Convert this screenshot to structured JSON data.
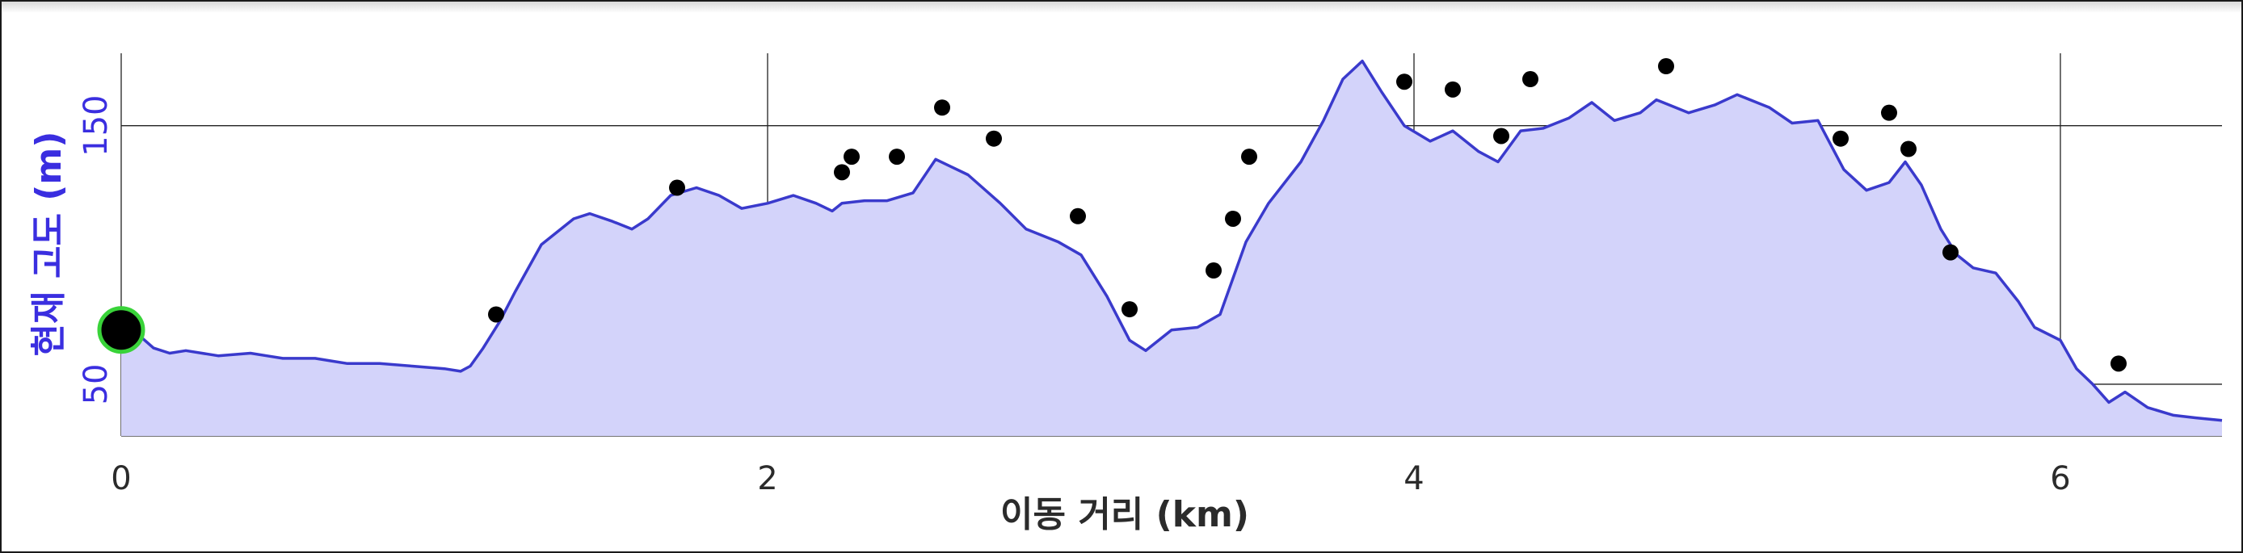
{
  "chart_data": {
    "type": "area",
    "xlabel": "이동 거리 (km)",
    "ylabel": "현재 고도 (m)",
    "xlim": [
      0,
      6.5
    ],
    "ylim": [
      30,
      178
    ],
    "x_ticks": [
      0,
      2,
      4,
      6
    ],
    "y_ticks": [
      50,
      150
    ],
    "grid": true,
    "colors": {
      "line": "#3a3acc",
      "fill": "#d3d3fa",
      "ylabel": "#3a2ee0",
      "marker_fill": "#000000",
      "marker_ring": "#39d339",
      "points": "#000000"
    },
    "series": [
      {
        "x": [
          0.0,
          0.1,
          0.15,
          0.2,
          0.3,
          0.4,
          0.45,
          0.5,
          0.6,
          0.65,
          0.7,
          0.8,
          0.9,
          1.0,
          1.05,
          1.08,
          1.12,
          1.17,
          1.22,
          1.3,
          1.4,
          1.45,
          1.52,
          1.58,
          1.63,
          1.7,
          1.78,
          1.85,
          1.92,
          2.0,
          2.08,
          2.15,
          2.2,
          2.23,
          2.3,
          2.37,
          2.45,
          2.52,
          2.57,
          2.62,
          2.72,
          2.8,
          2.9,
          2.97,
          3.05,
          3.12,
          3.17,
          3.25,
          3.33,
          3.4,
          3.48,
          3.55,
          3.65,
          3.72,
          3.78,
          3.84,
          3.9,
          3.97,
          4.05,
          4.12,
          4.2,
          4.26,
          4.33,
          4.4,
          4.48,
          4.55,
          4.62,
          4.7,
          4.75,
          4.85,
          4.93,
          5.0,
          5.1,
          5.17,
          5.25,
          5.33,
          5.4,
          5.47,
          5.52,
          5.57,
          5.63,
          5.68,
          5.73,
          5.8,
          5.87,
          5.92,
          6.0,
          6.05,
          6.1,
          6.15,
          6.2,
          6.27,
          6.35,
          6.42,
          6.5
        ],
        "y": [
          75,
          64,
          62,
          63,
          61,
          62,
          61,
          60,
          60,
          59,
          58,
          58,
          57,
          56,
          55,
          57,
          64,
          74,
          86,
          104,
          114,
          116,
          113,
          110,
          114,
          123,
          126,
          123,
          118,
          120,
          123,
          120,
          117,
          120,
          121,
          121,
          124,
          137,
          134,
          131,
          120,
          110,
          105,
          100,
          84,
          67,
          63,
          71,
          72,
          77,
          105,
          120,
          136,
          152,
          168,
          175,
          163,
          150,
          144,
          148,
          140,
          136,
          148,
          149,
          153,
          159,
          152,
          155,
          160,
          155,
          158,
          162,
          157,
          151,
          152,
          133,
          125,
          128,
          136,
          127,
          110,
          100,
          95,
          93,
          82,
          72,
          67,
          56,
          50,
          43,
          47,
          41,
          38,
          37,
          36
        ]
      }
    ],
    "scatter": {
      "x": [
        0.0,
        1.16,
        1.72,
        2.23,
        2.26,
        2.4,
        2.54,
        2.7,
        2.96,
        3.12,
        3.38,
        3.44,
        3.49,
        3.97,
        4.12,
        4.27,
        4.36,
        4.78,
        5.32,
        5.47,
        5.53,
        5.66,
        6.18
      ],
      "y": [
        71,
        77,
        126,
        132,
        138,
        138,
        157,
        145,
        115,
        79,
        94,
        114,
        138,
        167,
        164,
        146,
        168,
        173,
        145,
        155,
        141,
        101,
        58
      ]
    }
  }
}
